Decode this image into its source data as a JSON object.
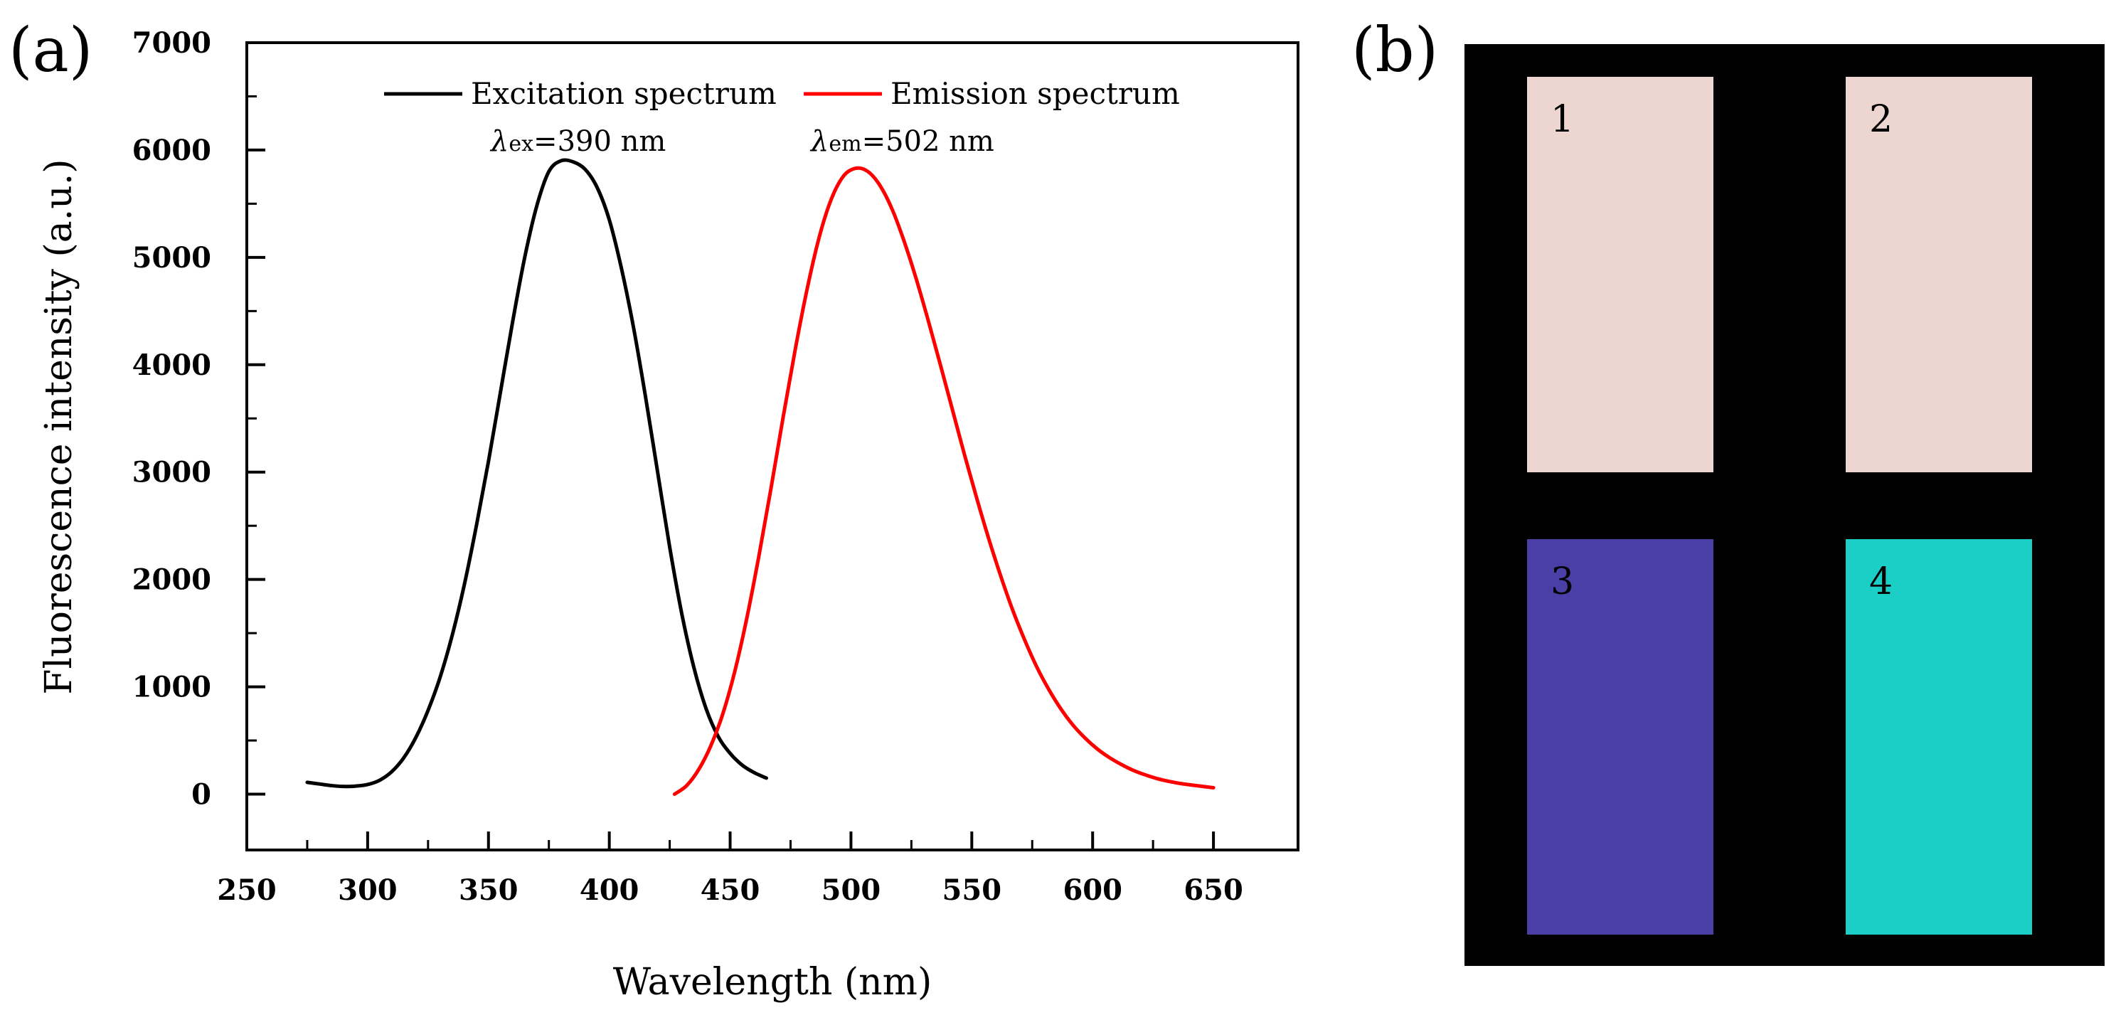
{
  "panel_a_label": "(a)",
  "panel_b_label": "(b)",
  "chart_data": {
    "type": "line",
    "title": "",
    "xlabel": "Wavelength (nm)",
    "ylabel": "Fluorescence intensity (a.u.)",
    "xlim": [
      250,
      685
    ],
    "ylim": [
      -520,
      7000
    ],
    "xticks": [
      250,
      300,
      350,
      400,
      450,
      500,
      550,
      600,
      650
    ],
    "yticks": [
      0,
      1000,
      2000,
      3000,
      4000,
      5000,
      6000,
      7000
    ],
    "grid": false,
    "legend_position": "top",
    "series": [
      {
        "name": "Excitation spectrum",
        "color": "#000000",
        "x": [
          275,
          280,
          285,
          290,
          295,
          300,
          305,
          310,
          315,
          320,
          325,
          330,
          335,
          340,
          345,
          350,
          355,
          360,
          365,
          370,
          375,
          380,
          385,
          390,
          395,
          400,
          405,
          410,
          415,
          420,
          425,
          430,
          435,
          440,
          445,
          450,
          455,
          460,
          465
        ],
        "y": [
          110,
          95,
          80,
          72,
          75,
          90,
          130,
          210,
          340,
          530,
          780,
          1090,
          1480,
          1950,
          2500,
          3100,
          3750,
          4400,
          5000,
          5480,
          5800,
          5900,
          5890,
          5820,
          5650,
          5350,
          4900,
          4350,
          3700,
          3000,
          2300,
          1680,
          1180,
          800,
          540,
          380,
          270,
          200,
          150
        ]
      },
      {
        "name": "Emission spectrum",
        "color": "#ff0000",
        "x": [
          427,
          432,
          437,
          442,
          447,
          452,
          457,
          462,
          467,
          472,
          477,
          482,
          487,
          492,
          497,
          502,
          507,
          512,
          517,
          522,
          527,
          532,
          537,
          542,
          547,
          552,
          557,
          562,
          567,
          572,
          577,
          582,
          587,
          592,
          597,
          602,
          607,
          612,
          617,
          622,
          627,
          632,
          637,
          642,
          650
        ],
        "y": [
          0,
          80,
          230,
          450,
          750,
          1150,
          1650,
          2230,
          2860,
          3520,
          4150,
          4720,
          5200,
          5550,
          5760,
          5830,
          5800,
          5670,
          5450,
          5150,
          4800,
          4410,
          4000,
          3580,
          3160,
          2760,
          2380,
          2030,
          1710,
          1430,
          1180,
          970,
          790,
          640,
          520,
          420,
          340,
          275,
          220,
          178,
          143,
          117,
          97,
          82,
          60
        ]
      }
    ],
    "annotations": [
      {
        "symbol": "λ",
        "subscript": "ex",
        "text": "=390 nm"
      },
      {
        "symbol": "λ",
        "subscript": "em",
        "text": "=502 nm"
      }
    ]
  },
  "panel_b": {
    "cards": [
      {
        "label": "1",
        "color": "#ecd6cf"
      },
      {
        "label": "2",
        "color": "#ecd6cf"
      },
      {
        "label": "3",
        "color": "#4a3fa6"
      },
      {
        "label": "4",
        "color": "#1ccfc6"
      }
    ]
  }
}
